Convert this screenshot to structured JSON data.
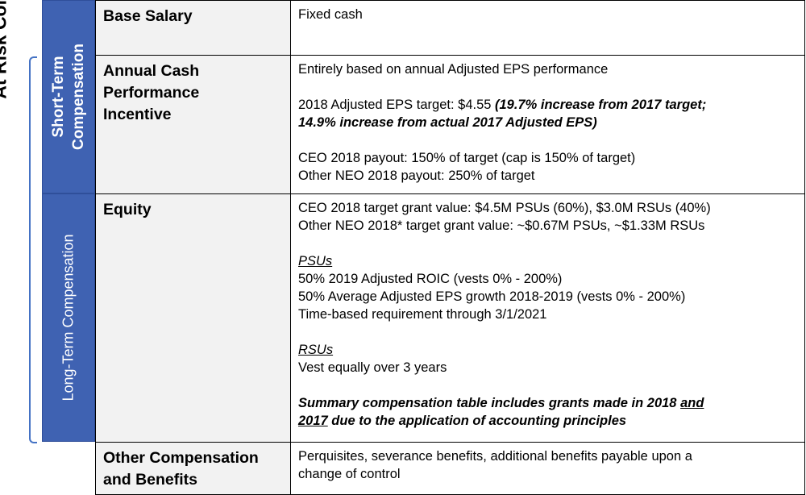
{
  "side_label": "At Risk Compensation",
  "bands": {
    "short_term": "Short-Term Compensation",
    "short_term_line1": "Short-Term",
    "short_term_line2": "Compensation",
    "long_term": "Long-Term Compensation"
  },
  "rows": {
    "base_salary": {
      "name": "Base Salary",
      "desc": "Fixed cash"
    },
    "annual_cash": {
      "name_line1": "Annual Cash",
      "name_line2": "Performance",
      "name_line3": "Incentive",
      "line1": "Entirely based on annual Adjusted EPS performance",
      "line2_plain": "2018 Adjusted EPS target: $4.55 ",
      "line2_bi": "(19.7% increase from 2017 target;",
      "line3_bi": "14.9% increase from actual 2017 Adjusted EPS)",
      "line4": "CEO 2018 payout: 150% of target (cap is 150% of target)",
      "line5": "Other NEO 2018 payout: 250% of target"
    },
    "equity": {
      "name": "Equity",
      "line1": "CEO 2018 target grant value: $4.5M PSUs (60%), $3.0M RSUs (40%)",
      "line2": "Other NEO 2018* target grant value: ~$0.67M PSUs, ~$1.33M RSUs",
      "psu_heading": "PSUs",
      "psu1": "50% 2019 Adjusted ROIC (vests 0% - 200%)",
      "psu2": "50% Average Adjusted EPS growth 2018-2019 (vests 0% - 200%)",
      "psu3": "Time-based requirement through 3/1/2021",
      "rsu_heading": "RSUs",
      "rsu1": "Vest equally over 3 years",
      "summary_a": "Summary compensation table includes grants made in 2018 ",
      "summary_and": "and",
      "summary_2017": "2017",
      "summary_b": " due to the application of accounting principles"
    },
    "other": {
      "name_line1": "Other Compensation",
      "name_line2": "and Benefits",
      "line1": "Perquisites, severance benefits, additional benefits payable upon a",
      "line2": "change of control"
    }
  }
}
